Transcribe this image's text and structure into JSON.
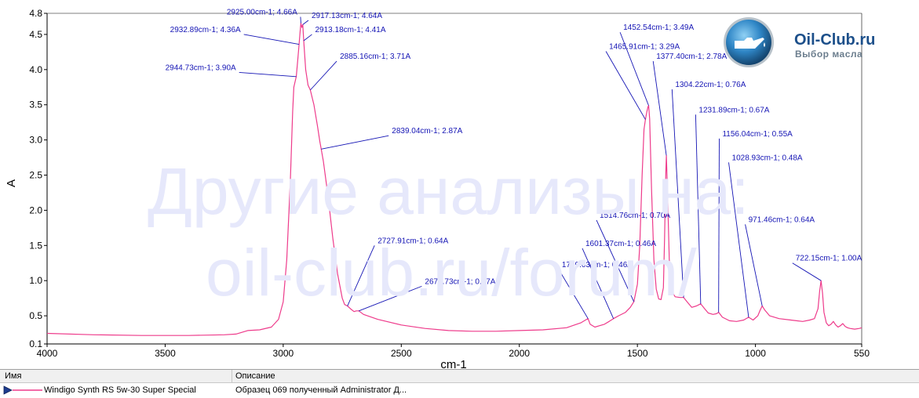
{
  "chart_data": {
    "type": "line",
    "xlabel": "cm-1",
    "ylabel": "A",
    "xlim": [
      4000,
      550
    ],
    "ylim": [
      0.1,
      4.8
    ],
    "x_ticks": [
      "4000",
      "3500",
      "3000",
      "2500",
      "2000",
      "1500",
      "1000",
      "550"
    ],
    "y_ticks": [
      "4.8",
      "4.5",
      "4.0",
      "3.5",
      "3.0",
      "2.5",
      "2.0",
      "1.5",
      "1.0",
      "0.5",
      "0.1"
    ],
    "grid": false,
    "line_color": "#ee3b8b",
    "annotation_color": "#1515b5",
    "series": [
      {
        "name": "Windigo Synth RS 5w-30 Super Special",
        "x": [
          4000,
          3800,
          3600,
          3400,
          3250,
          3200,
          3150,
          3100,
          3050,
          3020,
          3000,
          2985,
          2970,
          2960,
          2955,
          2944.73,
          2938,
          2932.89,
          2928,
          2925,
          2921,
          2917.13,
          2913.18,
          2905,
          2895,
          2885.16,
          2870,
          2855,
          2845,
          2839.04,
          2830,
          2810,
          2790,
          2770,
          2750,
          2740,
          2727.91,
          2715,
          2700,
          2690,
          2679.73,
          2660,
          2600,
          2500,
          2400,
          2300,
          2200,
          2100,
          2000,
          1900,
          1800,
          1740,
          1720,
          1709.03,
          1700,
          1680,
          1640,
          1620,
          1601.37,
          1580,
          1550,
          1530,
          1514.76,
          1500,
          1490,
          1480,
          1472,
          1465.91,
          1460,
          1455,
          1452.54,
          1448,
          1440,
          1430,
          1420,
          1410,
          1400,
          1390,
          1385,
          1380,
          1377.4,
          1372,
          1365,
          1355,
          1340,
          1320,
          1304.22,
          1290,
          1270,
          1250,
          1231.89,
          1215,
          1200,
          1180,
          1165,
          1156.04,
          1140,
          1110,
          1080,
          1050,
          1028.93,
          1010,
          990,
          980,
          971.46,
          960,
          940,
          900,
          850,
          800,
          770,
          750,
          735,
          728,
          722.15,
          716,
          710,
          700,
          690,
          680,
          670,
          660,
          650,
          640,
          630,
          620,
          610,
          600,
          580,
          560,
          550
        ],
        "y": [
          0.25,
          0.23,
          0.22,
          0.22,
          0.23,
          0.24,
          0.29,
          0.3,
          0.34,
          0.45,
          0.7,
          1.3,
          2.4,
          3.4,
          3.75,
          3.9,
          4.15,
          4.36,
          4.55,
          4.66,
          4.6,
          4.64,
          4.41,
          4.0,
          3.78,
          3.71,
          3.5,
          3.2,
          2.98,
          2.87,
          2.7,
          2.2,
          1.6,
          1.1,
          0.75,
          0.66,
          0.64,
          0.6,
          0.56,
          0.57,
          0.57,
          0.52,
          0.45,
          0.37,
          0.32,
          0.29,
          0.28,
          0.28,
          0.29,
          0.3,
          0.33,
          0.4,
          0.44,
          0.46,
          0.38,
          0.34,
          0.38,
          0.42,
          0.46,
          0.5,
          0.55,
          0.62,
          0.7,
          0.95,
          1.5,
          2.5,
          3.15,
          3.29,
          3.4,
          3.47,
          3.49,
          3.3,
          2.3,
          1.3,
          0.88,
          0.74,
          0.73,
          0.9,
          1.6,
          2.5,
          2.78,
          2.2,
          1.3,
          0.85,
          0.77,
          0.76,
          0.76,
          0.7,
          0.62,
          0.64,
          0.67,
          0.6,
          0.54,
          0.52,
          0.53,
          0.55,
          0.48,
          0.43,
          0.42,
          0.44,
          0.48,
          0.44,
          0.5,
          0.58,
          0.64,
          0.58,
          0.5,
          0.46,
          0.44,
          0.42,
          0.44,
          0.46,
          0.6,
          0.85,
          1.0,
          0.82,
          0.55,
          0.4,
          0.36,
          0.38,
          0.42,
          0.37,
          0.34,
          0.36,
          0.39,
          0.35,
          0.33,
          0.32,
          0.31,
          0.32,
          0.33
        ]
      }
    ],
    "annotations": [
      {
        "text": "2925.00cm-1; 4.66A",
        "x": 2925.0,
        "y": 4.66,
        "tx": 2940,
        "ty": 4.75,
        "anchor": "end"
      },
      {
        "text": "2917.13cm-1; 4.64A",
        "x": 2917.13,
        "y": 4.64,
        "tx": 2880,
        "ty": 4.7,
        "anchor": "start"
      },
      {
        "text": "2932.89cm-1; 4.36A",
        "x": 2932.89,
        "y": 4.36,
        "tx": 3180,
        "ty": 4.5,
        "anchor": "end"
      },
      {
        "text": "2913.18cm-1; 4.41A",
        "x": 2913.18,
        "y": 4.41,
        "tx": 2865,
        "ty": 4.5,
        "anchor": "start"
      },
      {
        "text": "2885.16cm-1; 3.71A",
        "x": 2885.16,
        "y": 3.71,
        "tx": 2760,
        "ty": 4.12,
        "anchor": "start"
      },
      {
        "text": "2944.73cm-1; 3.90A",
        "x": 2944.73,
        "y": 3.9,
        "tx": 3200,
        "ty": 3.96,
        "anchor": "end"
      },
      {
        "text": "2839.04cm-1; 2.87A",
        "x": 2839.04,
        "y": 2.87,
        "tx": 2540,
        "ty": 3.06,
        "anchor": "start"
      },
      {
        "text": "2727.91cm-1; 0.64A",
        "x": 2727.91,
        "y": 0.64,
        "tx": 2600,
        "ty": 1.5,
        "anchor": "start"
      },
      {
        "text": "2679.73cm-1; 0.57A",
        "x": 2679.73,
        "y": 0.57,
        "tx": 2400,
        "ty": 0.92,
        "anchor": "start"
      },
      {
        "text": "1709.03cm-1; 0.46A",
        "x": 1709.03,
        "y": 0.46,
        "tx": 1820,
        "ty": 1.16,
        "anchor": "start"
      },
      {
        "text": "1601.37cm-1; 0.46A",
        "x": 1601.37,
        "y": 0.46,
        "tx": 1720,
        "ty": 1.46,
        "anchor": "start"
      },
      {
        "text": "1514.76cm-1; 0.70A",
        "x": 1514.76,
        "y": 0.7,
        "tx": 1660,
        "ty": 1.86,
        "anchor": "start"
      },
      {
        "text": "1465.91cm-1; 3.29A",
        "x": 1465.91,
        "y": 3.29,
        "tx": 1620,
        "ty": 4.26,
        "anchor": "start"
      },
      {
        "text": "1452.54cm-1; 3.49A",
        "x": 1452.54,
        "y": 3.49,
        "tx": 1560,
        "ty": 4.53,
        "anchor": "start"
      },
      {
        "text": "1377.40cm-1; 2.78A",
        "x": 1377.4,
        "y": 2.78,
        "tx": 1420,
        "ty": 4.12,
        "anchor": "start"
      },
      {
        "text": "1304.22cm-1; 0.76A",
        "x": 1304.22,
        "y": 0.76,
        "tx": 1340,
        "ty": 3.72,
        "anchor": "start"
      },
      {
        "text": "1231.89cm-1; 0.67A",
        "x": 1231.89,
        "y": 0.67,
        "tx": 1240,
        "ty": 3.36,
        "anchor": "start"
      },
      {
        "text": "1156.04cm-1; 0.55A",
        "x": 1156.04,
        "y": 0.55,
        "tx": 1140,
        "ty": 3.02,
        "anchor": "start"
      },
      {
        "text": "1028.93cm-1; 0.48A",
        "x": 1028.93,
        "y": 0.48,
        "tx": 1100,
        "ty": 2.68,
        "anchor": "start"
      },
      {
        "text": "971.46cm-1; 0.64A",
        "x": 971.46,
        "y": 0.64,
        "tx": 1030,
        "ty": 1.8,
        "anchor": "start"
      },
      {
        "text": "722.15cm-1; 1.00A",
        "x": 722.15,
        "y": 1.0,
        "tx": 830,
        "ty": 1.25,
        "anchor": "start"
      }
    ]
  },
  "watermark": {
    "line1": "Другие анализы на:",
    "line2": "oil-club.ru/forum/"
  },
  "logo": {
    "text": "Oil-Club.ru",
    "subtitle": "Выбор масла",
    "icon": "oil-can-icon"
  },
  "legend": {
    "header_name": "Имя",
    "header_desc": "Описание",
    "row_name": "Windigo Synth RS 5w-30 Super Special",
    "row_desc": "Образец 069 полученный Administrator Д...",
    "marker_icon": "play-arrow-icon"
  }
}
